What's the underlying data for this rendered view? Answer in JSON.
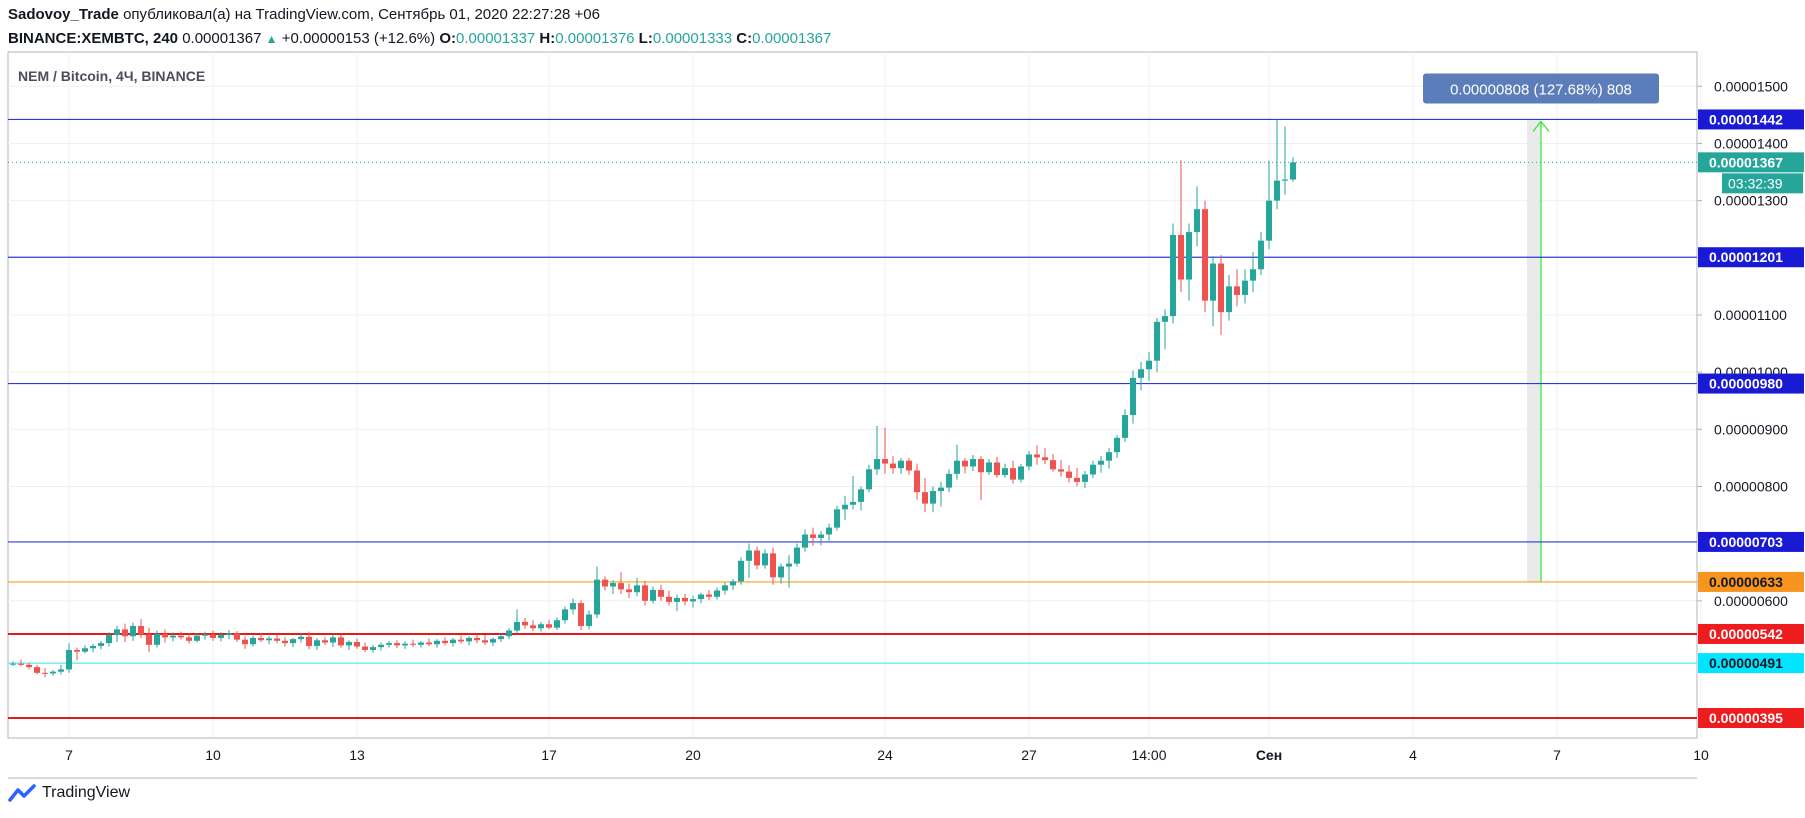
{
  "header": {
    "author": "Sadovoy_Trade",
    "published_text": "опубликовал(а) на TradingView.com, Сентябрь 01, 2020 22:27:28 +06",
    "symbol": "BINANCE:XEMBTC, 240",
    "last": "0.00001367",
    "change": "+0.00000153 (+12.6%)",
    "o_label": "O:",
    "o_value": "0.00001337",
    "h_label": "H:",
    "h_value": "0.00001376",
    "l_label": "L:",
    "l_value": "0.00001333",
    "c_label": "C:",
    "c_value": "0.00001367"
  },
  "chart_title": "NEM / Bitcoin, 4Ч, BINANCE",
  "footer": {
    "brand": "TradingView"
  },
  "colors": {
    "up": "#26a69a",
    "down": "#ef5350",
    "blue_line": "#2b3bd9",
    "orange_line": "#f7a21b",
    "red_line": "#e41b1b",
    "cyan_line": "#5fe6f0",
    "measure": "#5b7db9",
    "arrow": "#2ee62e"
  },
  "chart_data": {
    "type": "candlestick",
    "title": "NEM / Bitcoin, 4Ч, BINANCE",
    "ylim": [
      3.6e-06,
      1.56e-05
    ],
    "y_ticks": [
      "0.00001500",
      "0.00001400",
      "0.00001300",
      "0.00001100",
      "0.00001000",
      "0.00000900",
      "0.00000800",
      "0.00000600"
    ],
    "x_ticks": [
      {
        "label": "7",
        "index": 7
      },
      {
        "label": "10",
        "index": 25
      },
      {
        "label": "13",
        "index": 43
      },
      {
        "label": "17",
        "index": 67
      },
      {
        "label": "20",
        "index": 85
      },
      {
        "label": "24",
        "index": 109
      },
      {
        "label": "27",
        "index": 127
      },
      {
        "label": "14:00",
        "index": 142
      },
      {
        "label": "Сен",
        "index": 157
      },
      {
        "label": "4",
        "index": 175
      },
      {
        "label": "7",
        "index": 193
      },
      {
        "label": "10",
        "index": 211
      }
    ],
    "x_max_index": 220,
    "levels": [
      {
        "value": 1.442e-05,
        "label": "0.00001442",
        "kind": "blue"
      },
      {
        "value": 1.201e-05,
        "label": "0.00001201",
        "kind": "blue"
      },
      {
        "value": 9.8e-06,
        "label": "0.00000980",
        "kind": "blue"
      },
      {
        "value": 7.03e-06,
        "label": "0.00000703",
        "kind": "blue"
      },
      {
        "value": 6.33e-06,
        "label": "0.00000633",
        "kind": "orange"
      },
      {
        "value": 5.42e-06,
        "label": "0.00000542",
        "kind": "red"
      },
      {
        "value": 4.91e-06,
        "label": "0.00000491",
        "kind": "cyan"
      },
      {
        "value": 3.95e-06,
        "label": "0.00000395",
        "kind": "red"
      }
    ],
    "last_price": {
      "value": 1.367e-05,
      "label": "0.00001367",
      "countdown": "03:32:39"
    },
    "measure": {
      "from": 6.33e-06,
      "to": 1.442e-05,
      "x_index": 191,
      "label": "0.00000808 (127.68%) 808"
    },
    "candles": [
      [
        4.9e-06,
        4.94e-06,
        4.86e-06,
        4.9e-06
      ],
      [
        4.9e-06,
        4.97e-06,
        4.86e-06,
        4.88e-06
      ],
      [
        4.88e-06,
        4.91e-06,
        4.8e-06,
        4.84e-06
      ],
      [
        4.84e-06,
        4.88e-06,
        4.71e-06,
        4.74e-06
      ],
      [
        4.74e-06,
        4.82e-06,
        4.66e-06,
        4.73e-06
      ],
      [
        4.73e-06,
        4.79e-06,
        4.69e-06,
        4.76e-06
      ],
      [
        4.76e-06,
        4.88e-06,
        4.71e-06,
        4.8e-06
      ],
      [
        4.8e-06,
        5.26e-06,
        4.74e-06,
        5.14e-06
      ],
      [
        5.14e-06,
        5.18e-06,
        4.96e-06,
        5.11e-06
      ],
      [
        5.11e-06,
        5.22e-06,
        5.08e-06,
        5.17e-06
      ],
      [
        5.17e-06,
        5.25e-06,
        5.1e-06,
        5.21e-06
      ],
      [
        5.21e-06,
        5.3e-06,
        5.15e-06,
        5.26e-06
      ],
      [
        5.26e-06,
        5.45e-06,
        5.2e-06,
        5.4e-06
      ],
      [
        5.4e-06,
        5.56e-06,
        5.28e-06,
        5.5e-06
      ],
      [
        5.5e-06,
        5.6e-06,
        5.28e-06,
        5.38e-06
      ],
      [
        5.38e-06,
        5.62e-06,
        5.3e-06,
        5.56e-06
      ],
      [
        5.56e-06,
        5.68e-06,
        5.35e-06,
        5.41e-06
      ],
      [
        5.41e-06,
        5.53e-06,
        5.1e-06,
        5.23e-06
      ],
      [
        5.23e-06,
        5.48e-06,
        5.18e-06,
        5.42e-06
      ],
      [
        5.42e-06,
        5.5e-06,
        5.27e-06,
        5.36e-06
      ],
      [
        5.36e-06,
        5.45e-06,
        5.29e-06,
        5.39e-06
      ],
      [
        5.39e-06,
        5.46e-06,
        5.32e-06,
        5.36e-06
      ],
      [
        5.36e-06,
        5.42e-06,
        5.25e-06,
        5.3e-06
      ],
      [
        5.3e-06,
        5.43e-06,
        5.27e-06,
        5.39e-06
      ],
      [
        5.39e-06,
        5.46e-06,
        5.32e-06,
        5.41e-06
      ],
      [
        5.41e-06,
        5.48e-06,
        5.3e-06,
        5.35e-06
      ],
      [
        5.35e-06,
        5.45e-06,
        5.29e-06,
        5.4e-06
      ],
      [
        5.4e-06,
        5.49e-06,
        5.33e-06,
        5.43e-06
      ],
      [
        5.43e-06,
        5.47e-06,
        5.28e-06,
        5.32e-06
      ],
      [
        5.32e-06,
        5.38e-06,
        5.16e-06,
        5.24e-06
      ],
      [
        5.24e-06,
        5.39e-06,
        5.2e-06,
        5.35e-06
      ],
      [
        5.35e-06,
        5.43e-06,
        5.28e-06,
        5.31e-06
      ],
      [
        5.31e-06,
        5.38e-06,
        5.24e-06,
        5.34e-06
      ],
      [
        5.34e-06,
        5.42e-06,
        5.26e-06,
        5.3e-06
      ],
      [
        5.3e-06,
        5.37e-06,
        5.2e-06,
        5.26e-06
      ],
      [
        5.26e-06,
        5.35e-06,
        5.19e-06,
        5.33e-06
      ],
      [
        5.33e-06,
        5.42e-06,
        5.27e-06,
        5.37e-06
      ],
      [
        5.37e-06,
        5.46e-06,
        5.15e-06,
        5.21e-06
      ],
      [
        5.21e-06,
        5.35e-06,
        5.14e-06,
        5.31e-06
      ],
      [
        5.31e-06,
        5.37e-06,
        5.23e-06,
        5.27e-06
      ],
      [
        5.27e-06,
        5.41e-06,
        5.19e-06,
        5.36e-06
      ],
      [
        5.36e-06,
        5.41e-06,
        5.18e-06,
        5.22e-06
      ],
      [
        5.22e-06,
        5.31e-06,
        5.14e-06,
        5.28e-06
      ],
      [
        5.28e-06,
        5.34e-06,
        5.16e-06,
        5.2e-06
      ],
      [
        5.2e-06,
        5.27e-06,
        5.1e-06,
        5.14e-06
      ],
      [
        5.14e-06,
        5.23e-06,
        5.09e-06,
        5.19e-06
      ],
      [
        5.19e-06,
        5.27e-06,
        5.13e-06,
        5.23e-06
      ],
      [
        5.23e-06,
        5.3e-06,
        5.18e-06,
        5.26e-06
      ],
      [
        5.26e-06,
        5.31e-06,
        5.17e-06,
        5.22e-06
      ],
      [
        5.22e-06,
        5.29e-06,
        5.16e-06,
        5.25e-06
      ],
      [
        5.25e-06,
        5.32e-06,
        5.19e-06,
        5.23e-06
      ],
      [
        5.23e-06,
        5.3e-06,
        5.18e-06,
        5.27e-06
      ],
      [
        5.27e-06,
        5.34e-06,
        5.21e-06,
        5.24e-06
      ],
      [
        5.24e-06,
        5.33e-06,
        5.18e-06,
        5.3e-06
      ],
      [
        5.3e-06,
        5.36e-06,
        5.22e-06,
        5.26e-06
      ],
      [
        5.26e-06,
        5.35e-06,
        5.2e-06,
        5.32e-06
      ],
      [
        5.32e-06,
        5.39e-06,
        5.25e-06,
        5.29e-06
      ],
      [
        5.29e-06,
        5.38e-06,
        5.22e-06,
        5.35e-06
      ],
      [
        5.35e-06,
        5.41e-06,
        5.26e-06,
        5.31e-06
      ],
      [
        5.31e-06,
        5.4e-06,
        5.23e-06,
        5.27e-06
      ],
      [
        5.27e-06,
        5.36e-06,
        5.21e-06,
        5.33e-06
      ],
      [
        5.33e-06,
        5.43e-06,
        5.28e-06,
        5.38e-06
      ],
      [
        5.38e-06,
        5.52e-06,
        5.33e-06,
        5.48e-06
      ],
      [
        5.48e-06,
        5.85e-06,
        5.43e-06,
        5.63e-06
      ],
      [
        5.63e-06,
        5.7e-06,
        5.51e-06,
        5.57e-06
      ],
      [
        5.57e-06,
        5.66e-06,
        5.47e-06,
        5.52e-06
      ],
      [
        5.52e-06,
        5.63e-06,
        5.46e-06,
        5.59e-06
      ],
      [
        5.59e-06,
        5.66e-06,
        5.5e-06,
        5.53e-06
      ],
      [
        5.53e-06,
        5.71e-06,
        5.49e-06,
        5.66e-06
      ],
      [
        5.66e-06,
        5.9e-06,
        5.6e-06,
        5.85e-06
      ],
      [
        5.85e-06,
        6.04e-06,
        5.76e-06,
        5.96e-06
      ],
      [
        5.96e-06,
        6.01e-06,
        5.49e-06,
        5.56e-06
      ],
      [
        5.56e-06,
        5.83e-06,
        5.5e-06,
        5.76e-06
      ],
      [
        5.76e-06,
        6.6e-06,
        5.7e-06,
        6.37e-06
      ],
      [
        6.37e-06,
        6.43e-06,
        6.18e-06,
        6.25e-06
      ],
      [
        6.25e-06,
        6.36e-06,
        6.12e-06,
        6.31e-06
      ],
      [
        6.31e-06,
        6.5e-06,
        6.12e-06,
        6.2e-06
      ],
      [
        6.2e-06,
        6.3e-06,
        6.05e-06,
        6.15e-06
      ],
      [
        6.15e-06,
        6.4e-06,
        6.08e-06,
        6.27e-06
      ],
      [
        6.27e-06,
        6.35e-06,
        5.92e-06,
        6e-06
      ],
      [
        6e-06,
        6.25e-06,
        5.95e-06,
        6.19e-06
      ],
      [
        6.19e-06,
        6.28e-06,
        6e-06,
        6.07e-06
      ],
      [
        6.07e-06,
        6.18e-06,
        5.92e-06,
        5.98e-06
      ],
      [
        5.98e-06,
        6.11e-06,
        5.82e-06,
        6.05e-06
      ],
      [
        6.05e-06,
        6.12e-06,
        5.92e-06,
        5.99e-06
      ],
      [
        5.99e-06,
        6.09e-06,
        5.88e-06,
        6.03e-06
      ],
      [
        6.03e-06,
        6.14e-06,
        5.96e-06,
        6.11e-06
      ],
      [
        6.11e-06,
        6.19e-06,
        6.01e-06,
        6.07e-06
      ],
      [
        6.07e-06,
        6.23e-06,
        6.02e-06,
        6.18e-06
      ],
      [
        6.18e-06,
        6.32e-06,
        6.11e-06,
        6.27e-06
      ],
      [
        6.27e-06,
        6.38e-06,
        6.19e-06,
        6.34e-06
      ],
      [
        6.34e-06,
        6.76e-06,
        6.28e-06,
        6.7e-06
      ],
      [
        6.7e-06,
        7e-06,
        6.4e-06,
        6.88e-06
      ],
      [
        6.88e-06,
        6.95e-06,
        6.55e-06,
        6.62e-06
      ],
      [
        6.62e-06,
        6.9e-06,
        6.56e-06,
        6.83e-06
      ],
      [
        6.83e-06,
        6.93e-06,
        6.28e-06,
        6.41e-06
      ],
      [
        6.41e-06,
        6.65e-06,
        6.3e-06,
        6.6e-06
      ],
      [
        6.6e-06,
        6.8e-06,
        6.23e-06,
        6.65e-06
      ],
      [
        6.65e-06,
        7e-06,
        6.6e-06,
        6.93e-06
      ],
      [
        6.93e-06,
        7.25e-06,
        6.86e-06,
        7.16e-06
      ],
      [
        7.16e-06,
        7.28e-06,
        6.96e-06,
        7.1e-06
      ],
      [
        7.1e-06,
        7.22e-06,
        6.97e-06,
        7.16e-06
      ],
      [
        7.16e-06,
        7.35e-06,
        7.05e-06,
        7.28e-06
      ],
      [
        7.28e-06,
        7.66e-06,
        7.23e-06,
        7.6e-06
      ],
      [
        7.6e-06,
        7.83e-06,
        7.41e-06,
        7.68e-06
      ],
      [
        7.68e-06,
        8.18e-06,
        7.6e-06,
        7.73e-06
      ],
      [
        7.73e-06,
        8e-06,
        7.58e-06,
        7.95e-06
      ],
      [
        7.95e-06,
        8.38e-06,
        7.9e-06,
        8.3e-06
      ],
      [
        8.3e-06,
        9.06e-06,
        8.2e-06,
        8.48e-06
      ],
      [
        8.48e-06,
        9.03e-06,
        8.22e-06,
        8.4e-06
      ],
      [
        8.4e-06,
        8.53e-06,
        8.22e-06,
        8.32e-06
      ],
      [
        8.32e-06,
        8.5e-06,
        8.22e-06,
        8.45e-06
      ],
      [
        8.45e-06,
        8.5e-06,
        8.2e-06,
        8.28e-06
      ],
      [
        8.28e-06,
        8.4e-06,
        7.77e-06,
        7.9e-06
      ],
      [
        7.9e-06,
        8.15e-06,
        7.55e-06,
        7.7e-06
      ],
      [
        7.7e-06,
        8e-06,
        7.55e-06,
        7.92e-06
      ],
      [
        7.92e-06,
        8.08e-06,
        7.65e-06,
        7.98e-06
      ],
      [
        7.98e-06,
        8.3e-06,
        7.9e-06,
        8.22e-06
      ],
      [
        8.22e-06,
        8.73e-06,
        8.12e-06,
        8.45e-06
      ],
      [
        8.45e-06,
        8.5e-06,
        8.23e-06,
        8.35e-06
      ],
      [
        8.35e-06,
        8.55e-06,
        8.27e-06,
        8.48e-06
      ],
      [
        8.48e-06,
        8.53e-06,
        7.76e-06,
        8.25e-06
      ],
      [
        8.25e-06,
        8.48e-06,
        8.2e-06,
        8.42e-06
      ],
      [
        8.42e-06,
        8.52e-06,
        8.15e-06,
        8.2e-06
      ],
      [
        8.2e-06,
        8.4e-06,
        8.15e-06,
        8.32e-06
      ],
      [
        8.32e-06,
        8.45e-06,
        8.05e-06,
        8.12e-06
      ],
      [
        8.12e-06,
        8.39e-06,
        8.07e-06,
        8.35e-06
      ],
      [
        8.35e-06,
        8.62e-06,
        8.28e-06,
        8.56e-06
      ],
      [
        8.56e-06,
        8.72e-06,
        8.38e-06,
        8.51e-06
      ],
      [
        8.51e-06,
        8.67e-06,
        8.39e-06,
        8.46e-06
      ],
      [
        8.46e-06,
        8.57e-06,
        8.26e-06,
        8.3e-06
      ],
      [
        8.3e-06,
        8.46e-06,
        8.17e-06,
        8.26e-06
      ],
      [
        8.26e-06,
        8.37e-06,
        8.07e-06,
        8.15e-06
      ],
      [
        8.15e-06,
        8.32e-06,
        8e-06,
        8.08e-06
      ],
      [
        8.08e-06,
        8.27e-06,
        7.97e-06,
        8.21e-06
      ],
      [
        8.21e-06,
        8.45e-06,
        8.15e-06,
        8.38e-06
      ],
      [
        8.38e-06,
        8.53e-06,
        8.24e-06,
        8.45e-06
      ],
      [
        8.45e-06,
        8.67e-06,
        8.31e-06,
        8.6e-06
      ],
      [
        8.6e-06,
        8.9e-06,
        8.5e-06,
        8.85e-06
      ],
      [
        8.85e-06,
        9.35e-06,
        8.78e-06,
        9.25e-06
      ],
      [
        9.25e-06,
        1.003e-05,
        9.1e-06,
        9.9e-06
      ],
      [
        9.9e-06,
        1.018e-05,
        9.68e-06,
        1.005e-05
      ],
      [
        1.005e-05,
        1.035e-05,
        9.85e-06,
        1.02e-05
      ],
      [
        1.02e-05,
        1.095e-05,
        1e-05,
        1.088e-05
      ],
      [
        1.088e-05,
        1.11e-05,
        1.04e-05,
        1.098e-05
      ],
      [
        1.098e-05,
        1.26e-05,
        1.085e-05,
        1.24e-05
      ],
      [
        1.24e-05,
        1.371e-05,
        1.14e-05,
        1.162e-05
      ],
      [
        1.162e-05,
        1.26e-05,
        1.125e-05,
        1.245e-05
      ],
      [
        1.245e-05,
        1.325e-05,
        1.22e-05,
        1.285e-05
      ],
      [
        1.285e-05,
        1.3e-05,
        1.105e-05,
        1.125e-05
      ],
      [
        1.125e-05,
        1.203e-05,
        1.08e-05,
        1.19e-05
      ],
      [
        1.19e-05,
        1.205e-05,
        1.065e-05,
        1.105e-05
      ],
      [
        1.105e-05,
        1.17e-05,
        1.09e-05,
        1.15e-05
      ],
      [
        1.15e-05,
        1.18e-05,
        1.115e-05,
        1.135e-05
      ],
      [
        1.135e-05,
        1.18e-05,
        1.12e-05,
        1.16e-05
      ],
      [
        1.16e-05,
        1.21e-05,
        1.14e-05,
        1.18e-05
      ],
      [
        1.18e-05,
        1.245e-05,
        1.17e-05,
        1.23e-05
      ],
      [
        1.23e-05,
        1.37e-05,
        1.215e-05,
        1.3e-05
      ],
      [
        1.3e-05,
        1.442e-05,
        1.285e-05,
        1.335e-05
      ],
      [
        1.335e-05,
        1.43e-05,
        1.31e-05,
        1.337e-05
      ],
      [
        1.337e-05,
        1.376e-05,
        1.333e-05,
        1.367e-05
      ]
    ]
  }
}
